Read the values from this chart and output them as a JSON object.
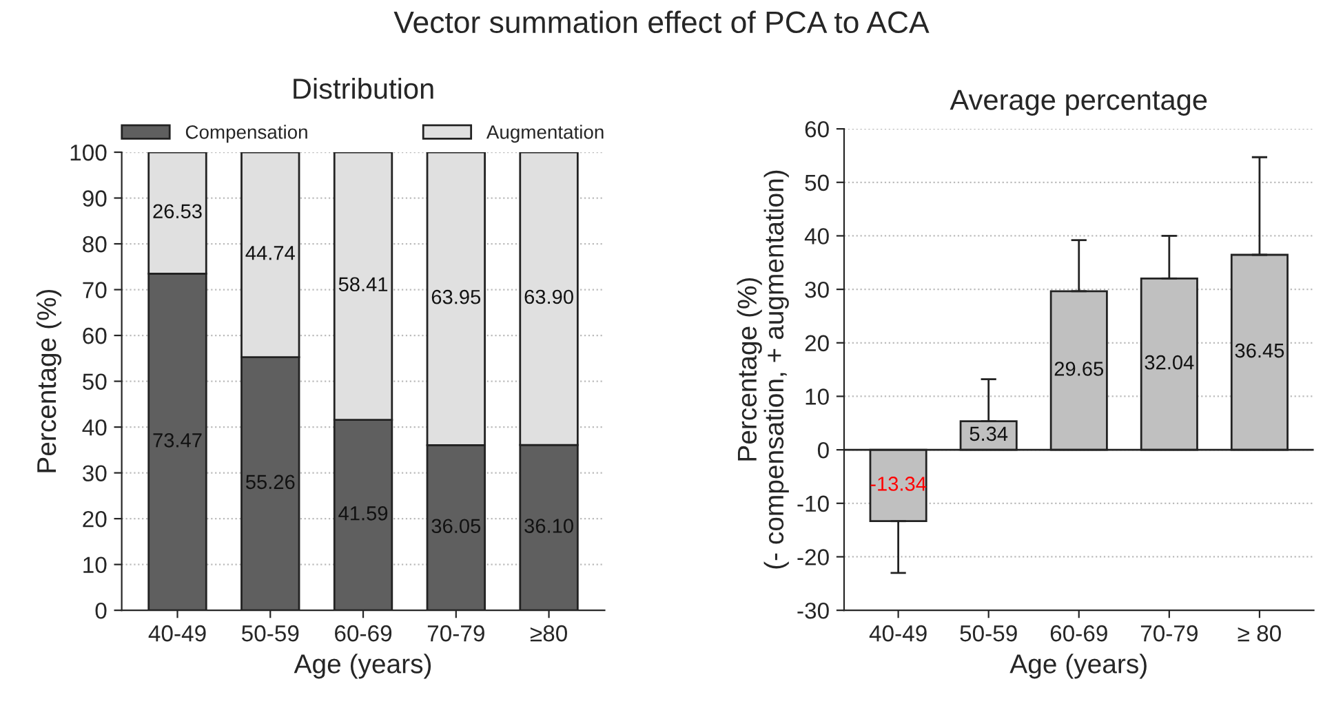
{
  "chart_data": [
    {
      "type": "bar",
      "title": "Vector summation effect of PCA to ACA",
      "subtitle": "Distribution",
      "xlabel": "Age (years)",
      "ylabel": "Percentage (%)",
      "categories": [
        "40-49",
        "50-59",
        "60-69",
        "70-79",
        "≥80"
      ],
      "stacked": true,
      "series": [
        {
          "name": "Compensation",
          "color": "#5f5f5f",
          "values": [
            73.47,
            55.26,
            41.59,
            36.05,
            36.1
          ],
          "value_labels": [
            "73.47",
            "55.26",
            "41.59",
            "36.05",
            "36.10"
          ]
        },
        {
          "name": "Augmentation",
          "color": "#e0e0e0",
          "values": [
            26.53,
            44.74,
            58.41,
            63.95,
            63.9
          ],
          "value_labels": [
            "26.53",
            "44.74",
            "58.41",
            "63.95",
            "63.90"
          ]
        }
      ],
      "ylim": [
        0,
        100
      ],
      "yticks": [
        0,
        10,
        20,
        30,
        40,
        50,
        60,
        70,
        80,
        90,
        100
      ],
      "grid": "y",
      "legend": "top"
    },
    {
      "type": "bar",
      "title": "Average percentage",
      "xlabel": "Age (years)",
      "ylabel": "Percentage (%)\n(- compensation, + augmentation)",
      "categories": [
        "40-49",
        "50-59",
        "60-69",
        "70-79",
        "≥ 80"
      ],
      "color": "#c0c0c0",
      "values": [
        -13.34,
        5.34,
        29.65,
        32.04,
        36.45
      ],
      "errors": [
        [
          -23,
          -13.34
        ],
        [
          5.34,
          13.2
        ],
        [
          29.65,
          39.2
        ],
        [
          32.04,
          40
        ],
        [
          36.45,
          54.7
        ]
      ],
      "ylim": [
        -30,
        60
      ],
      "yticks": [
        -30,
        -20,
        -10,
        0,
        10,
        20,
        30,
        40,
        50,
        60
      ],
      "grid": "y",
      "data_labels": true
    }
  ]
}
